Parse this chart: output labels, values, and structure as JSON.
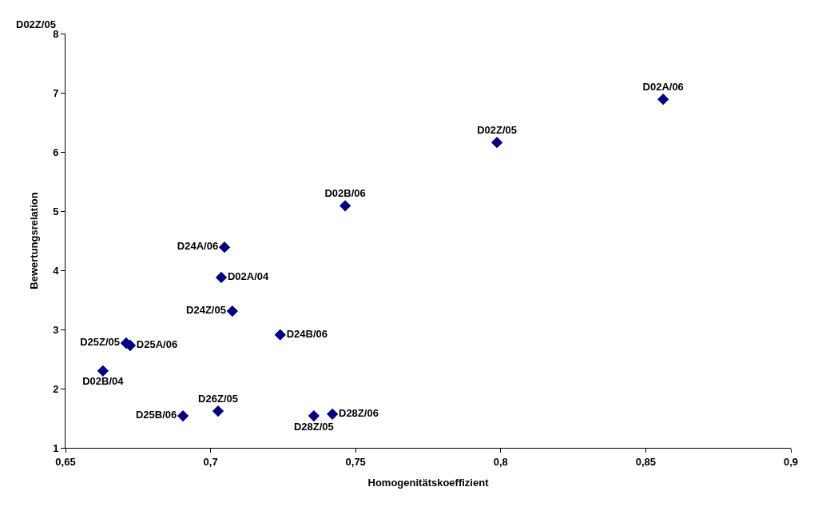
{
  "chart_data": {
    "type": "scatter",
    "xlabel": "Homogenitätskoeffizient",
    "ylabel": "Bewertungsrelation",
    "annotations": [
      "D02Z/05"
    ],
    "x": [
      0.856,
      0.7987,
      0.7464,
      0.7048,
      0.7037,
      0.7075,
      0.724,
      0.6709,
      0.6723,
      0.6629,
      0.6905,
      0.7026,
      0.7356,
      0.742
    ],
    "series": [
      {
        "color": "#000080",
        "values": [
          6.89,
          6.16,
          5.09,
          4.39,
          3.88,
          3.31,
          2.91,
          2.77,
          2.73,
          2.3,
          1.54,
          1.62,
          1.54,
          1.57
        ],
        "value_labels": [
          "D02A/06",
          "D02Z/05",
          "D02B/06",
          "D24A/06",
          "D02A/04",
          "D24Z/05",
          "D24B/06",
          "D25Z/05",
          "D25A/06",
          "D02B/04",
          "D25B/06",
          "D26Z/05",
          "D28Z/05",
          "D28Z/06"
        ]
      }
    ],
    "xlim": [
      0.65,
      0.9
    ],
    "xticks": [
      {
        "value": 0.65,
        "label": "0,65"
      },
      {
        "value": 0.7,
        "label": "0,7"
      },
      {
        "value": 0.75,
        "label": "0,75"
      },
      {
        "value": 0.8,
        "label": "0,8"
      },
      {
        "value": 0.85,
        "label": "0,85"
      },
      {
        "value": 0.9,
        "label": "0,9"
      }
    ],
    "ylim": [
      1,
      8
    ],
    "yticks": [
      1,
      2,
      3,
      4,
      5,
      6,
      7,
      8
    ],
    "legend": false,
    "marker": "diamond"
  }
}
